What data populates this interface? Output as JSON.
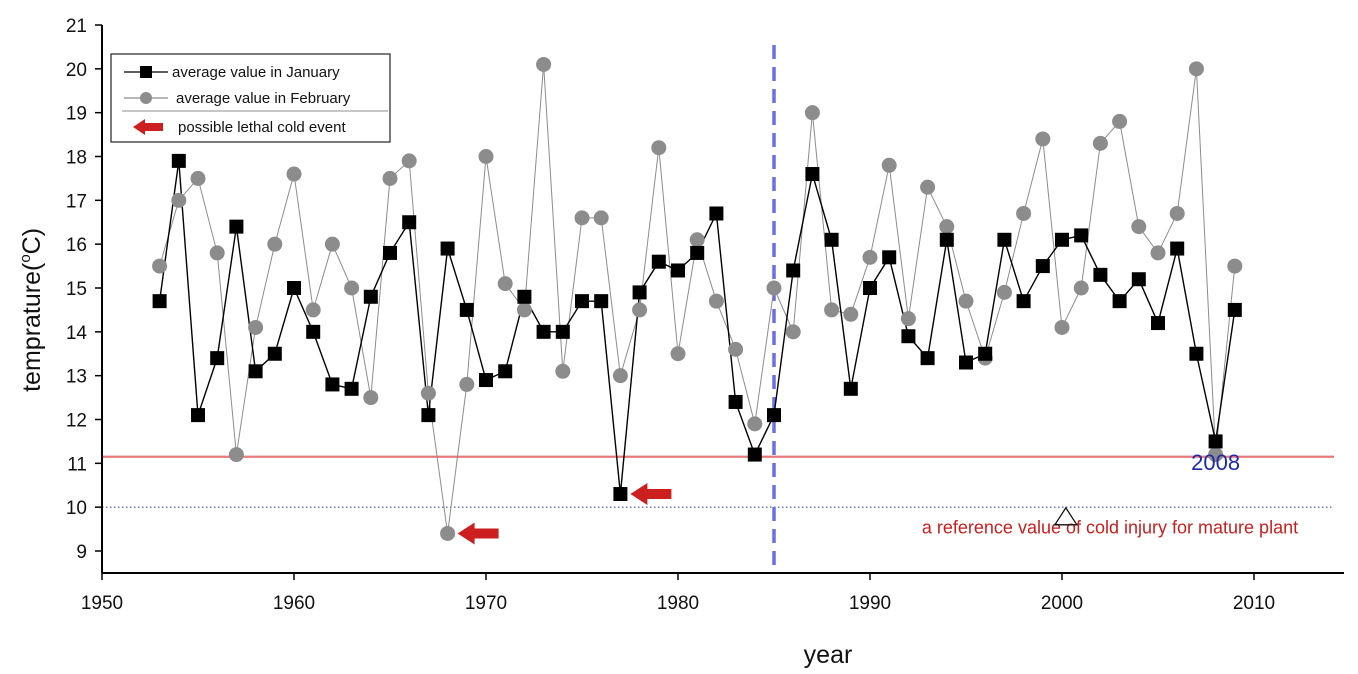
{
  "chart_data": {
    "type": "line",
    "title": "",
    "xlabel": "year",
    "ylabel": "temprature(oC)",
    "ylabel_parts": {
      "main": "temprature(",
      "sup": "o",
      "unit": "C)"
    },
    "xlim": [
      1950,
      2015
    ],
    "ylim": [
      8.5,
      21
    ],
    "xticks": [
      "1950",
      "1960",
      "1970",
      "1980",
      "1990",
      "2000",
      "2010"
    ],
    "yticks": [
      "9",
      "10",
      "11",
      "12",
      "13",
      "14",
      "15",
      "16",
      "17",
      "18",
      "19",
      "20",
      "21"
    ],
    "grid": false,
    "legend": {
      "position": "top-left",
      "entries": [
        "average value in January",
        "average value in February",
        "possible lethal cold event"
      ]
    },
    "series": [
      {
        "name": "average value in January",
        "marker": "square",
        "color": "#000000",
        "x": [
          1953,
          1954,
          1955,
          1956,
          1957,
          1958,
          1959,
          1960,
          1961,
          1962,
          1963,
          1964,
          1965,
          1966,
          1967,
          1968,
          1969,
          1970,
          1971,
          1972,
          1973,
          1974,
          1975,
          1976,
          1977,
          1978,
          1979,
          1980,
          1981,
          1982,
          1983,
          1984,
          1985,
          1986,
          1987,
          1988,
          1989,
          1990,
          1991,
          1992,
          1993,
          1994,
          1995,
          1996,
          1997,
          1998,
          1999,
          2000,
          2001,
          2002,
          2003,
          2004,
          2005,
          2006,
          2007,
          2008,
          2009
        ],
        "y": [
          14.7,
          17.9,
          12.1,
          13.4,
          16.4,
          13.1,
          13.5,
          15.0,
          14.0,
          12.8,
          12.7,
          14.8,
          15.8,
          16.5,
          12.1,
          15.9,
          14.5,
          12.9,
          13.1,
          14.8,
          14.0,
          14.0,
          14.7,
          14.7,
          10.3,
          14.9,
          15.6,
          15.4,
          15.8,
          16.7,
          12.4,
          11.2,
          12.1,
          15.4,
          17.6,
          16.1,
          12.7,
          15.0,
          15.7,
          13.9,
          13.4,
          16.1,
          13.3,
          13.5,
          16.1,
          14.7,
          15.5,
          16.1,
          16.2,
          15.3,
          14.7,
          15.2,
          14.2,
          15.9,
          13.5,
          11.5,
          14.5
        ]
      },
      {
        "name": "average value in February",
        "marker": "circle",
        "color": "#8c8c8c",
        "x": [
          1953,
          1954,
          1955,
          1956,
          1957,
          1958,
          1959,
          1960,
          1961,
          1962,
          1963,
          1964,
          1965,
          1966,
          1967,
          1968,
          1969,
          1970,
          1971,
          1972,
          1973,
          1974,
          1975,
          1976,
          1977,
          1978,
          1979,
          1980,
          1981,
          1982,
          1983,
          1984,
          1985,
          1986,
          1987,
          1988,
          1989,
          1990,
          1991,
          1992,
          1993,
          1994,
          1995,
          1996,
          1997,
          1998,
          1999,
          2000,
          2001,
          2002,
          2003,
          2004,
          2005,
          2006,
          2007,
          2008,
          2009
        ],
        "y": [
          15.5,
          17.0,
          17.5,
          15.8,
          11.2,
          14.1,
          16.0,
          17.6,
          14.5,
          16.0,
          15.0,
          12.5,
          17.5,
          17.9,
          12.6,
          9.4,
          12.8,
          18.0,
          15.1,
          14.5,
          20.1,
          13.1,
          16.6,
          16.6,
          13.0,
          14.5,
          18.2,
          13.5,
          16.1,
          14.7,
          13.6,
          11.9,
          15.0,
          14.0,
          19.0,
          14.5,
          14.4,
          15.7,
          17.8,
          14.3,
          17.3,
          16.4,
          14.7,
          13.4,
          14.9,
          16.7,
          18.4,
          14.1,
          15.0,
          18.3,
          18.8,
          16.4,
          15.8,
          16.7,
          20.0,
          11.2,
          15.5
        ]
      }
    ],
    "reference_lines": [
      {
        "type": "horizontal",
        "y": 11.15,
        "color": "#e87a7a",
        "style": "solid"
      },
      {
        "type": "horizontal",
        "y": 10.0,
        "color": "#5a6fb0",
        "style": "dotted"
      },
      {
        "type": "vertical",
        "x": 1985,
        "color": "#6c6ee6",
        "style": "dashed"
      }
    ],
    "annotations": [
      {
        "name": "cold-event-1968",
        "kind": "arrow",
        "x": 1968,
        "y": 9.4,
        "color": "#cc2020"
      },
      {
        "name": "cold-event-1977",
        "kind": "arrow",
        "x": 1977,
        "y": 10.3,
        "color": "#cc2020"
      },
      {
        "name": "year-2008-label",
        "kind": "text",
        "text": "2008",
        "x": 2008,
        "y": 10.85,
        "color": "#1f2aa8"
      },
      {
        "name": "reference-text",
        "kind": "text",
        "text": "a reference value of cold injury  for mature plant",
        "x": 2002.5,
        "y": 9.4,
        "color": "#c81e1e"
      },
      {
        "name": "triangle-marker",
        "kind": "triangle",
        "x": 2000.2,
        "y": 9.78,
        "color": "#111111"
      }
    ]
  }
}
